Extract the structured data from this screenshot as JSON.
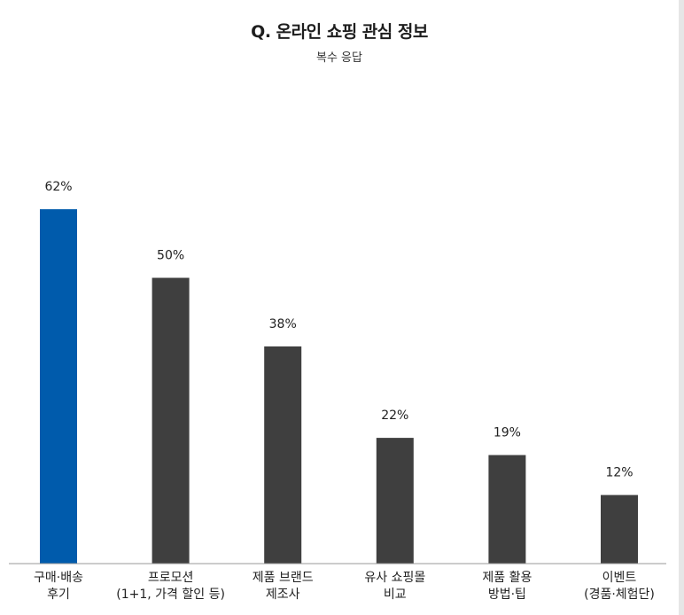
{
  "chart_data": {
    "type": "bar",
    "title": "Q. 온라인 쇼핑 관심 정보",
    "subtitle": "복수 응답",
    "categories": [
      [
        "구매·배송",
        "후기"
      ],
      [
        "프로모션",
        "(1+1, 가격 할인 등)"
      ],
      [
        "제품 브랜드",
        "제조사"
      ],
      [
        "유사 쇼핑몰",
        "비교"
      ],
      [
        "제품 활용",
        "방법·팁"
      ],
      [
        "이벤트",
        "(경품·체험단)"
      ]
    ],
    "values": [
      62,
      50,
      38,
      22,
      19,
      12
    ],
    "value_labels": [
      "62%",
      "50%",
      "38%",
      "22%",
      "19%",
      "12%"
    ],
    "unit": "%",
    "ylim": [
      0,
      100
    ],
    "xlabel": "",
    "ylabel": "",
    "grid": false,
    "colors": {
      "highlight": "#005bac",
      "default": "#3f3f3f",
      "axis": "#999999"
    }
  }
}
